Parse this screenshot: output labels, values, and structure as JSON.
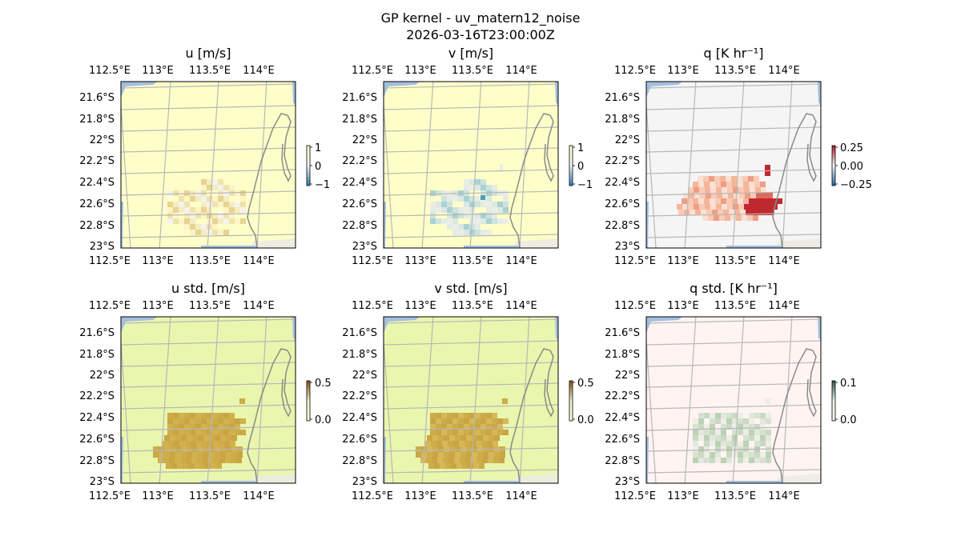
{
  "figure": {
    "title": "GP kernel - uv_matern12_noise",
    "subtitle": "2026-03-16T23:00:00Z"
  },
  "chart_data": [
    {
      "type": "heatmap",
      "title": "u [m/s]",
      "top_ticks": [
        "112.5°E",
        "113°E",
        "113.5°E",
        "114°E"
      ],
      "bottom_ticks": [
        "112.5°E",
        "113°E",
        "113.5°E",
        "114°E"
      ],
      "left_ticks": [
        "21.6°S",
        "21.8°S",
        "22°S",
        "22.2°S",
        "22.4°S",
        "22.6°S",
        "22.8°S",
        "23°S"
      ],
      "colorbar": {
        "ticks": [
          "1",
          "0",
          "−1"
        ],
        "range": [
          -1,
          1
        ]
      },
      "background_color": "#feffc8",
      "patch_colors": [
        "#fdf3c8",
        "#f6ecc0",
        "#efe3a8",
        "#e6d590",
        "#f3f3ee"
      ]
    },
    {
      "type": "heatmap",
      "title": "v [m/s]",
      "top_ticks": [
        "112.5°E",
        "113°E",
        "113.5°E",
        "114°E"
      ],
      "bottom_ticks": [
        "112.5°E",
        "113°E",
        "113.5°E",
        "114°E"
      ],
      "left_ticks": [
        "21.6°S",
        "21.8°S",
        "22°S",
        "22.2°S",
        "22.4°S",
        "22.6°S",
        "22.8°S",
        "23°S"
      ],
      "colorbar": {
        "ticks": [
          "1",
          "0",
          "−1"
        ],
        "range": [
          -1,
          1
        ]
      },
      "background_color": "#feffc8",
      "patch_colors": [
        "#e4ece6",
        "#dbe8e3",
        "#cfe2dc",
        "#eceee5",
        "#a9d2d2",
        "#4aa3b0"
      ]
    },
    {
      "type": "heatmap",
      "title": "q [K hr⁻¹]",
      "top_ticks": [
        "112.5°E",
        "113°E",
        "113.5°E",
        "114°E"
      ],
      "bottom_ticks": [
        "112.5°E",
        "113°E",
        "113.5°E",
        "114°E"
      ],
      "left_ticks": [
        "21.6°S",
        "21.8°S",
        "22°S",
        "22.2°S",
        "22.4°S",
        "22.6°S",
        "22.8°S",
        "23°S"
      ],
      "colorbar": {
        "ticks": [
          "0.25",
          "0.00",
          "−0.25"
        ],
        "range": [
          -0.25,
          0.25
        ]
      },
      "background_color": "#f5f5f5",
      "patch_colors": [
        "#fbe0d2",
        "#f8cbb6",
        "#f4b59b",
        "#ee9e82",
        "#d96b5c",
        "#c0282f",
        "#fde6d8"
      ]
    },
    {
      "type": "heatmap",
      "title": "u std. [m/s]",
      "top_ticks": [
        "112.5°E",
        "113°E",
        "113.5°E",
        "114°E"
      ],
      "bottom_ticks": [
        "112.5°E",
        "113°E",
        "113.5°E",
        "114°E"
      ],
      "left_ticks": [
        "21.6°S",
        "21.8°S",
        "22°S",
        "22.2°S",
        "22.4°S",
        "22.6°S",
        "22.8°S",
        "23°S"
      ],
      "colorbar": {
        "ticks": [
          "0.5",
          "0.0"
        ],
        "range": [
          0,
          0.5
        ]
      },
      "background_color": "#e9f6ad",
      "patch_colors": [
        "#ceac48",
        "#c9a544",
        "#d2b24e"
      ]
    },
    {
      "type": "heatmap",
      "title": "v std. [m/s]",
      "top_ticks": [
        "112.5°E",
        "113°E",
        "113.5°E",
        "114°E"
      ],
      "bottom_ticks": [
        "112.5°E",
        "113°E",
        "113.5°E",
        "114°E"
      ],
      "left_ticks": [
        "21.6°S",
        "21.8°S",
        "22°S",
        "22.2°S",
        "22.4°S",
        "22.6°S",
        "22.8°S",
        "23°S"
      ],
      "colorbar": {
        "ticks": [
          "0.5",
          "0.0"
        ],
        "range": [
          0,
          0.5
        ]
      },
      "background_color": "#e9f6ad",
      "patch_colors": [
        "#ceac48",
        "#c9a544",
        "#d6b85a"
      ]
    },
    {
      "type": "heatmap",
      "title": "q std. [K hr⁻¹]",
      "top_ticks": [
        "112.5°E",
        "113°E",
        "113.5°E",
        "114°E"
      ],
      "bottom_ticks": [
        "112.5°E",
        "113°E",
        "113.5°E",
        "114°E"
      ],
      "left_ticks": [
        "21.6°S",
        "21.8°S",
        "22°S",
        "22.2°S",
        "22.4°S",
        "22.6°S",
        "22.8°S",
        "23°S"
      ],
      "colorbar": {
        "ticks": [
          "0.1",
          "0.0"
        ],
        "range": [
          0,
          0.1
        ]
      },
      "background_color": "#fff4f2",
      "patch_colors": [
        "#e2e8dc",
        "#d6e2d0",
        "#c9d9c2",
        "#edeee8",
        "#bcd1b5"
      ]
    }
  ],
  "colors": {
    "ocean_edge": "#a3bfe0",
    "coastline": "#8a8a8a",
    "gridline": "#b8b8b8",
    "land_tint": "#ecebe2"
  }
}
